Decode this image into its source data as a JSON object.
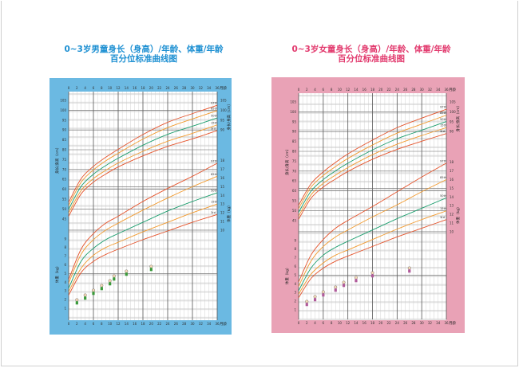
{
  "charts": [
    {
      "title_line1": "0~3岁男童身长（身高）/年龄、体重/年龄",
      "title_line2": "百分位标准曲线图"
    },
    {
      "title_line1": "0~3岁女童身长（身高）/年龄、体重/年龄",
      "title_line2": "百分位标准曲线图"
    }
  ],
  "chart_data": [
    {
      "type": "line",
      "panel_color": "#6bb9e2",
      "title": "0~3岁男童身长（身高）/年龄、体重/年龄 百分位标准曲线图",
      "xlabel": "月龄",
      "ylabel_length": "身长/身高（cm）",
      "ylabel_weight": "体重（kg）",
      "xlim": [
        0,
        36
      ],
      "x_ticks": [
        0,
        2,
        4,
        6,
        8,
        10,
        12,
        14,
        16,
        18,
        20,
        22,
        24,
        26,
        28,
        30,
        32,
        34,
        36
      ],
      "length_ticks_left": [
        45,
        50,
        55,
        60,
        65,
        70,
        75,
        80,
        85,
        90,
        95,
        100,
        105
      ],
      "length_ticks_right": [
        90,
        95,
        100,
        105
      ],
      "weight_ticks_left": [
        1,
        2,
        3,
        4,
        5,
        6,
        7,
        8,
        9
      ],
      "weight_ticks_right": [
        10,
        11,
        12,
        13,
        14,
        15,
        16,
        17,
        18
      ],
      "grid": true,
      "x": [
        0,
        3,
        6,
        9,
        12,
        18,
        24,
        30,
        36
      ],
      "length_series": [
        {
          "name": "3rd",
          "label": "3rd",
          "color": "#e5532b",
          "values": [
            46.3,
            57.6,
            63.6,
            67.7,
            71.3,
            76.9,
            81.7,
            85.5,
            89.7
          ]
        },
        {
          "name": "15th",
          "label": "15th",
          "color": "#f29a2e",
          "values": [
            48.0,
            59.3,
            65.4,
            69.6,
            73.3,
            79.2,
            84.3,
            88.3,
            92.6
          ]
        },
        {
          "name": "50th",
          "label": "50th",
          "color": "#1b9e6e",
          "values": [
            49.9,
            61.4,
            67.6,
            72.0,
            75.7,
            82.3,
            87.8,
            91.9,
            96.1
          ]
        },
        {
          "name": "85th",
          "label": "85th",
          "color": "#f29a2e",
          "values": [
            51.8,
            63.5,
            69.8,
            74.4,
            78.2,
            85.4,
            91.2,
            95.6,
            99.8
          ]
        },
        {
          "name": "97th",
          "label": "97th",
          "color": "#e5532b",
          "values": [
            53.4,
            65.3,
            71.6,
            76.2,
            80.2,
            87.7,
            93.9,
            98.3,
            102.5
          ]
        }
      ],
      "weight_series": [
        {
          "name": "3rd",
          "label": "3rd",
          "color": "#e5532b",
          "values": [
            2.5,
            5.1,
            6.4,
            7.2,
            7.8,
            8.9,
            9.9,
            10.9,
            11.8
          ]
        },
        {
          "name": "15th",
          "label": "15th",
          "color": "#f29a2e",
          "values": [
            2.9,
            5.6,
            7.1,
            8.0,
            8.6,
            9.8,
            10.9,
            12.0,
            13.0
          ]
        },
        {
          "name": "50th",
          "label": "50th",
          "color": "#1b9e6e",
          "values": [
            3.3,
            6.4,
            7.9,
            8.9,
            9.6,
            10.9,
            12.2,
            13.3,
            14.3
          ]
        },
        {
          "name": "85th",
          "label": "85th",
          "color": "#f29a2e",
          "values": [
            3.9,
            7.2,
            8.9,
            10.0,
            10.8,
            12.3,
            13.7,
            15.0,
            16.2
          ]
        },
        {
          "name": "97th",
          "label": "97th",
          "color": "#e5532b",
          "values": [
            4.3,
            7.8,
            9.6,
            10.8,
            11.6,
            13.3,
            14.8,
            16.2,
            17.7
          ]
        }
      ],
      "milestone_months": [
        2,
        4,
        6,
        8,
        10,
        11,
        14,
        20
      ]
    },
    {
      "type": "line",
      "panel_color": "#e9a2b6",
      "title": "0~3岁女童身长（身高）/年龄、体重/年龄 百分位标准曲线图",
      "xlabel": "月龄",
      "ylabel_length": "身长/身高（cm）",
      "ylabel_weight": "体重（kg）",
      "xlim": [
        0,
        36
      ],
      "x_ticks": [
        0,
        2,
        4,
        6,
        8,
        10,
        12,
        14,
        16,
        18,
        20,
        22,
        24,
        26,
        28,
        30,
        32,
        34,
        36
      ],
      "length_ticks_left": [
        45,
        50,
        55,
        60,
        65,
        70,
        75,
        80,
        85,
        90,
        95,
        100,
        105
      ],
      "length_ticks_right": [
        90,
        95,
        100,
        105
      ],
      "weight_ticks_left": [
        1,
        2,
        3,
        4,
        5,
        6,
        7,
        8,
        9
      ],
      "weight_ticks_right": [
        10,
        11,
        12,
        13,
        14,
        15,
        16,
        17,
        18
      ],
      "grid": true,
      "x": [
        0,
        3,
        6,
        9,
        12,
        18,
        24,
        30,
        36
      ],
      "length_series": [
        {
          "name": "3rd",
          "label": "3rd",
          "color": "#e5532b",
          "values": [
            45.6,
            56.2,
            61.9,
            66.0,
            69.8,
            76.0,
            81.0,
            85.1,
            89.0
          ]
        },
        {
          "name": "15th",
          "label": "15th",
          "color": "#f29a2e",
          "values": [
            47.2,
            57.9,
            63.8,
            68.0,
            71.8,
            78.3,
            83.6,
            88.0,
            92.0
          ]
        },
        {
          "name": "50th",
          "label": "50th",
          "color": "#1b9e6e",
          "values": [
            49.1,
            59.8,
            65.7,
            70.1,
            74.0,
            80.7,
            86.4,
            90.7,
            95.1
          ]
        },
        {
          "name": "85th",
          "label": "85th",
          "color": "#f29a2e",
          "values": [
            51.0,
            61.8,
            67.8,
            72.3,
            76.4,
            83.2,
            89.2,
            93.8,
            98.3
          ]
        },
        {
          "name": "97th",
          "label": "97th",
          "color": "#e5532b",
          "values": [
            52.7,
            63.5,
            69.6,
            74.4,
            78.7,
            85.7,
            92.0,
            96.8,
            101.3
          ]
        }
      ],
      "weight_series": [
        {
          "name": "3rd",
          "label": "3rd",
          "color": "#e5532b",
          "values": [
            2.4,
            4.6,
            5.8,
            6.6,
            7.2,
            8.3,
            9.4,
            10.4,
            11.4
          ]
        },
        {
          "name": "15th",
          "label": "15th",
          "color": "#f29a2e",
          "values": [
            2.8,
            5.1,
            6.4,
            7.3,
            7.9,
            9.1,
            10.3,
            11.4,
            12.4
          ]
        },
        {
          "name": "50th",
          "label": "50th",
          "color": "#1b9e6e",
          "values": [
            3.2,
            5.8,
            7.3,
            8.2,
            8.9,
            10.2,
            11.5,
            12.7,
            13.9
          ]
        },
        {
          "name": "85th",
          "label": "85th",
          "color": "#f29a2e",
          "values": [
            3.7,
            6.6,
            8.3,
            9.4,
            10.2,
            11.7,
            13.1,
            14.6,
            16.0
          ]
        },
        {
          "name": "97th",
          "label": "97th",
          "color": "#e5532b",
          "values": [
            4.2,
            7.3,
            9.1,
            10.4,
            11.3,
            12.9,
            14.6,
            16.3,
            17.9
          ]
        }
      ],
      "milestone_months": [
        2,
        4,
        6,
        9,
        11,
        14,
        18,
        27
      ]
    }
  ]
}
